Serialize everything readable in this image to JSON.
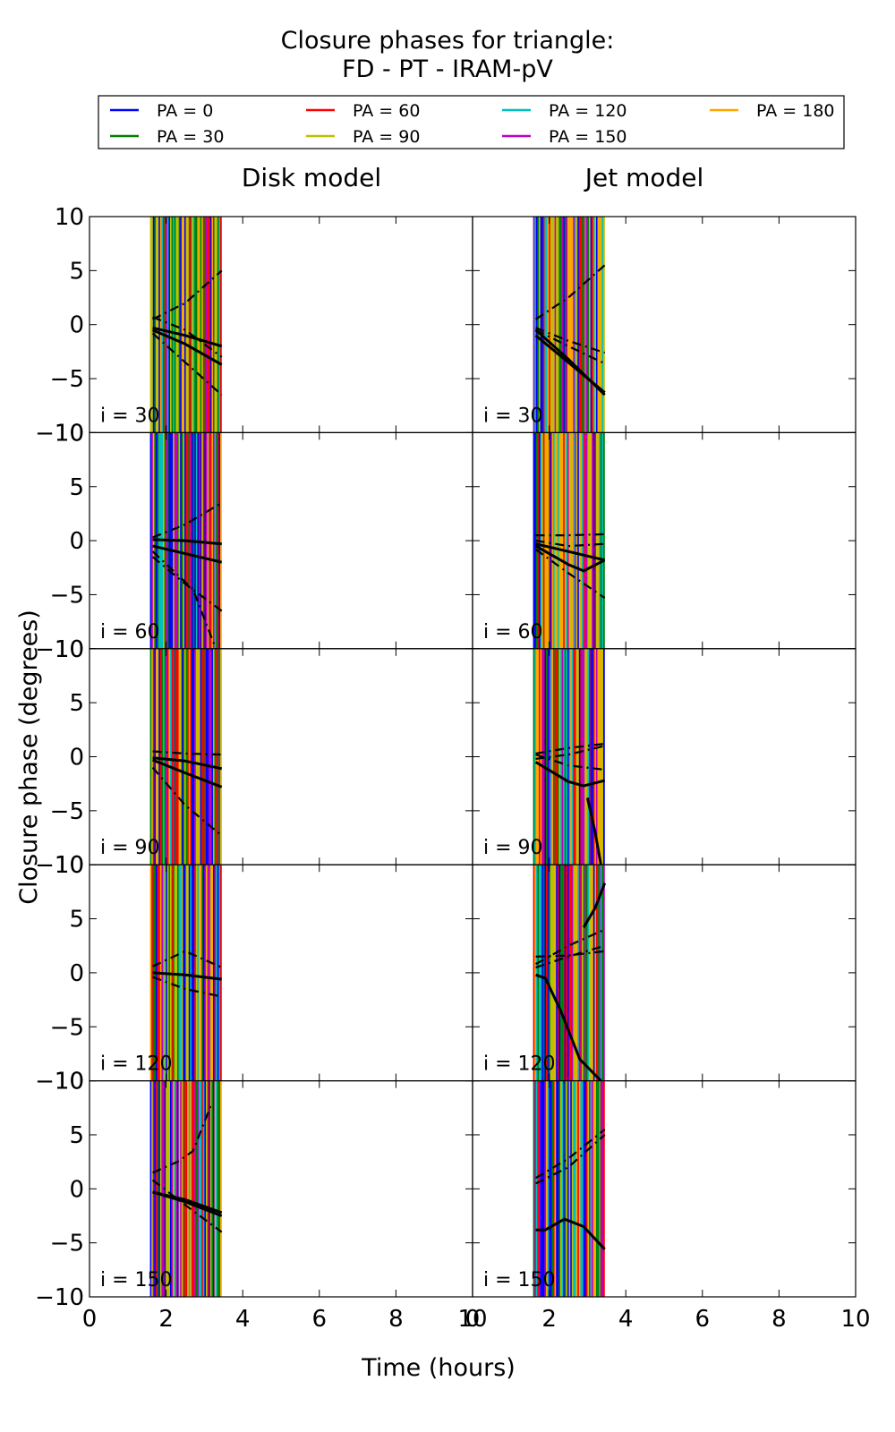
{
  "chart_data": {
    "type": "line",
    "title": "Closure phases for triangle:",
    "subtitle": "FD - PT - IRAM-pV",
    "xlabel": "Time (hours)",
    "ylabel": "Closure phase (degrees)",
    "xlim": [
      0,
      10
    ],
    "ylim": [
      -10,
      10
    ],
    "x_ticks": [
      0,
      2,
      4,
      6,
      8,
      10
    ],
    "y_ticks": [
      -10,
      -5,
      0,
      5,
      10
    ],
    "grid": false,
    "legend_position": "top",
    "columns": [
      "Disk model",
      "Jet model"
    ],
    "rows": [
      "i = 30",
      "i = 60",
      "i = 90",
      "i = 120",
      "i = 150"
    ],
    "series": [
      {
        "name": "PA = 0",
        "color": "#0000ff"
      },
      {
        "name": "PA = 30",
        "color": "#008000"
      },
      {
        "name": "PA = 60",
        "color": "#ff0000"
      },
      {
        "name": "PA = 90",
        "color": "#bfbf00"
      },
      {
        "name": "PA = 120",
        "color": "#00bfbf"
      },
      {
        "name": "PA = 150",
        "color": "#bf00bf"
      },
      {
        "name": "PA = 180",
        "color": "#ffa500"
      }
    ],
    "time_range_hours": [
      1.6,
      3.45
    ],
    "curves": [
      [
        [
          {
            "style": "solid",
            "x": [
              1.65,
              2.5,
              3.45
            ],
            "y": [
              -0.3,
              -1.0,
              -2.0
            ]
          },
          {
            "style": "solid",
            "x": [
              1.65,
              2.5,
              3.45
            ],
            "y": [
              -0.5,
              -1.8,
              -3.7
            ]
          },
          {
            "style": "dashdot",
            "x": [
              1.65,
              2.5,
              3.45
            ],
            "y": [
              -0.8,
              -3.5,
              -6.5
            ]
          },
          {
            "style": "dashdot",
            "x": [
              1.65,
              2.5,
              3.45
            ],
            "y": [
              0.5,
              2.0,
              5.0
            ]
          },
          {
            "style": "dashdot",
            "x": [
              1.65,
              2.5,
              3.45
            ],
            "y": [
              0.7,
              -0.5,
              -3.0
            ]
          }
        ],
        [
          {
            "style": "solid",
            "x": [
              1.65,
              2.5,
              3.45
            ],
            "y": [
              -1.0,
              -3.5,
              -6.3
            ]
          },
          {
            "style": "solid",
            "x": [
              1.65,
              2.5,
              3.45
            ],
            "y": [
              -0.5,
              -3.2,
              -6.5
            ]
          },
          {
            "style": "dashdot",
            "x": [
              1.65,
              2.5,
              3.45
            ],
            "y": [
              -0.3,
              -1.5,
              -2.6
            ]
          },
          {
            "style": "dashdot",
            "x": [
              1.65,
              2.5,
              3.45
            ],
            "y": [
              -0.5,
              -2.0,
              -3.6
            ]
          },
          {
            "style": "dashdot",
            "x": [
              1.65,
              2.5,
              3.45
            ],
            "y": [
              0.5,
              2.5,
              5.5
            ]
          }
        ]
      ],
      [
        [
          {
            "style": "solid",
            "x": [
              1.65,
              2.5,
              3.45
            ],
            "y": [
              0.1,
              0.0,
              -0.3
            ]
          },
          {
            "style": "solid",
            "x": [
              1.65,
              2.5,
              3.45
            ],
            "y": [
              -0.5,
              -1.2,
              -2.0
            ]
          },
          {
            "style": "dashdot",
            "x": [
              1.65,
              2.5,
              3.45
            ],
            "y": [
              -1.5,
              -4.0,
              -6.5
            ]
          },
          {
            "style": "dashdot",
            "x": [
              1.65,
              2.5,
              3.45
            ],
            "y": [
              0.3,
              1.5,
              3.5
            ]
          },
          {
            "style": "dashdot",
            "x": [
              1.65,
              2.7,
              3.3
            ],
            "y": [
              -1.0,
              -4.5,
              -10.0
            ]
          }
        ],
        [
          {
            "style": "solid",
            "x": [
              1.65,
              2.5,
              2.9,
              3.45
            ],
            "y": [
              -0.5,
              -2.2,
              -2.8,
              -1.8
            ]
          },
          {
            "style": "solid",
            "x": [
              1.65,
              2.5,
              3.45
            ],
            "y": [
              -0.3,
              -1.0,
              -1.8
            ]
          },
          {
            "style": "dashdot",
            "x": [
              1.65,
              2.5,
              3.45
            ],
            "y": [
              -0.8,
              -3.0,
              -5.3
            ]
          },
          {
            "style": "dashdot",
            "x": [
              1.65,
              2.5,
              3.45
            ],
            "y": [
              0.5,
              0.5,
              0.6
            ]
          },
          {
            "style": "dashdot",
            "x": [
              1.65,
              2.5,
              3.45
            ],
            "y": [
              0.0,
              -0.5,
              -0.3
            ]
          }
        ]
      ],
      [
        [
          {
            "style": "solid",
            "x": [
              1.65,
              2.5,
              3.45
            ],
            "y": [
              -0.1,
              -0.4,
              -1.1
            ]
          },
          {
            "style": "solid",
            "x": [
              1.65,
              2.5,
              3.45
            ],
            "y": [
              -0.3,
              -1.5,
              -2.8
            ]
          },
          {
            "style": "dashdot",
            "x": [
              1.65,
              2.5,
              3.45
            ],
            "y": [
              -1.0,
              -4.5,
              -7.3
            ]
          },
          {
            "style": "dashdot",
            "x": [
              1.65,
              2.5,
              3.45
            ],
            "y": [
              0.5,
              0.3,
              0.2
            ]
          }
        ],
        [
          {
            "style": "solid",
            "x": [
              1.65,
              2.5,
              2.9,
              3.45
            ],
            "y": [
              -0.5,
              -2.3,
              -2.7,
              -2.2
            ]
          },
          {
            "style": "solid",
            "x": [
              3.0,
              3.2,
              3.35
            ],
            "y": [
              -3.8,
              -7.0,
              -10.0
            ]
          },
          {
            "style": "dashdot",
            "x": [
              1.65,
              2.5,
              3.45
            ],
            "y": [
              0.3,
              0.8,
              1.2
            ]
          },
          {
            "style": "dashdot",
            "x": [
              1.65,
              2.5,
              3.45
            ],
            "y": [
              -0.2,
              0.2,
              1.0
            ]
          },
          {
            "style": "dashdot",
            "x": [
              1.65,
              2.5,
              3.45
            ],
            "y": [
              0.2,
              -0.8,
              -1.2
            ]
          }
        ]
      ],
      [
        [
          {
            "style": "solid",
            "x": [
              1.65,
              2.5,
              3.45
            ],
            "y": [
              0.0,
              -0.2,
              -0.6
            ]
          },
          {
            "style": "dashdot",
            "x": [
              1.65,
              2.5,
              3.45
            ],
            "y": [
              -0.4,
              -1.5,
              -2.2
            ]
          },
          {
            "style": "dashdot",
            "x": [
              1.65,
              2.5,
              3.45
            ],
            "y": [
              0.6,
              2.0,
              0.5
            ]
          }
        ],
        [
          {
            "style": "solid",
            "x": [
              1.65,
              1.9,
              2.3,
              2.8,
              3.35
            ],
            "y": [
              -0.2,
              -0.5,
              -3.5,
              -8.0,
              -10.0
            ]
          },
          {
            "style": "solid",
            "x": [
              2.9,
              3.2,
              3.45
            ],
            "y": [
              4.2,
              6.0,
              8.3
            ]
          },
          {
            "style": "dashdot",
            "x": [
              1.65,
              2.5,
              3.45
            ],
            "y": [
              0.8,
              2.5,
              4.0
            ]
          },
          {
            "style": "dashdot",
            "x": [
              1.65,
              2.5,
              3.45
            ],
            "y": [
              0.5,
              1.5,
              2.5
            ]
          },
          {
            "style": "dashdot",
            "x": [
              1.65,
              2.5,
              3.45
            ],
            "y": [
              1.5,
              1.6,
              2.0
            ]
          }
        ]
      ],
      [
        [
          {
            "style": "solid",
            "x": [
              1.65,
              2.5,
              3.45
            ],
            "y": [
              -0.3,
              -1.0,
              -2.2
            ]
          },
          {
            "style": "solid",
            "x": [
              1.65,
              2.5,
              3.45
            ],
            "y": [
              -0.3,
              -1.2,
              -2.5
            ]
          },
          {
            "style": "dashdot",
            "x": [
              1.65,
              2.5,
              3.45
            ],
            "y": [
              0.8,
              -1.5,
              -4.0
            ]
          },
          {
            "style": "dashdot",
            "x": [
              1.65,
              2.3,
              2.7,
              3.2
            ],
            "y": [
              1.5,
              2.5,
              3.5,
              8.0
            ]
          }
        ],
        [
          {
            "style": "solid",
            "x": [
              1.65,
              1.9,
              2.4,
              2.9,
              3.45
            ],
            "y": [
              -3.8,
              -3.8,
              -2.8,
              -3.5,
              -5.6
            ]
          },
          {
            "style": "dashdot",
            "x": [
              1.65,
              2.5,
              3.45
            ],
            "y": [
              0.5,
              2.0,
              5.0
            ]
          },
          {
            "style": "dashdot",
            "x": [
              1.65,
              2.5,
              3.45
            ],
            "y": [
              1.0,
              2.8,
              5.5
            ]
          }
        ]
      ]
    ]
  }
}
